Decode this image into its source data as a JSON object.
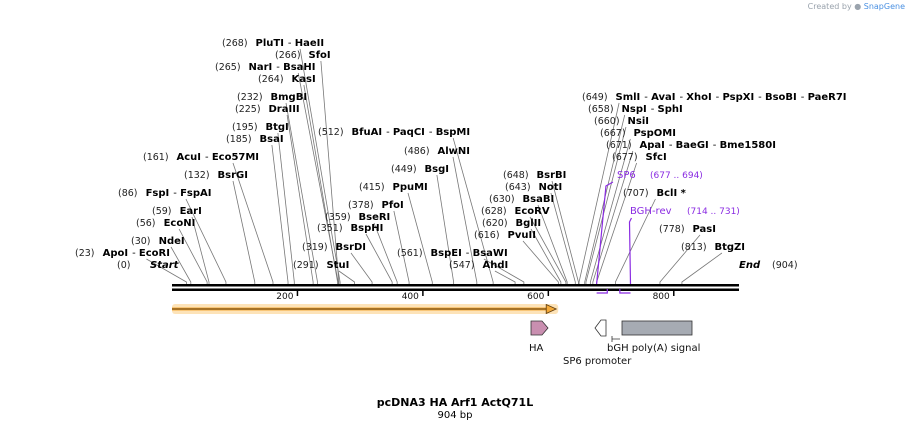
{
  "credit": {
    "prefix": "Created by",
    "brand": "SnapGene"
  },
  "map": {
    "name": "pcDNA3 HA Arf1 ActQ71L",
    "length_label": "904 bp",
    "length_bp": 904,
    "start_label": "Start",
    "end_label": "End",
    "start_pos_label": "(0)",
    "end_pos_label": "(904)",
    "ticks": [
      200,
      400,
      600,
      800
    ],
    "colors": {
      "ha": "#c98fb0",
      "polya": "#a6abb3",
      "orf": "#f4a938",
      "primer": "#8a2be2"
    }
  },
  "sites": [
    {
      "label": "ApoI",
      "pos_label": "(23)",
      "pos": 23,
      "group": [
        "ApoI",
        "EcoRI"
      ]
    },
    {
      "label": "NdeI",
      "pos_label": "(30)",
      "pos": 30,
      "group": [
        "NdeI"
      ]
    },
    {
      "label": "EcoNI",
      "pos_label": "(56)",
      "pos": 56,
      "group": [
        "EcoNI"
      ]
    },
    {
      "label": "EarI",
      "pos_label": "(59)",
      "pos": 59,
      "group": [
        "EarI"
      ]
    },
    {
      "label": "FspI",
      "pos_label": "(86)",
      "pos": 86,
      "group": [
        "FspI",
        "FspAI"
      ]
    },
    {
      "label": "BsrGI",
      "pos_label": "(132)",
      "pos": 132,
      "group": [
        "BsrGI"
      ]
    },
    {
      "label": "AcuI",
      "pos_label": "(161)",
      "pos": 161,
      "group": [
        "AcuI",
        "Eco57MI"
      ]
    },
    {
      "label": "BsaI",
      "pos_label": "(185)",
      "pos": 185,
      "group": [
        "BsaI"
      ]
    },
    {
      "label": "BtgI",
      "pos_label": "(195)",
      "pos": 195,
      "group": [
        "BtgI"
      ]
    },
    {
      "label": "DraIII",
      "pos_label": "(225)",
      "pos": 225,
      "group": [
        "DraIII"
      ]
    },
    {
      "label": "BmgBI",
      "pos_label": "(232)",
      "pos": 232,
      "group": [
        "BmgBI"
      ]
    },
    {
      "label": "KasI",
      "pos_label": "(264)",
      "pos": 264,
      "group": [
        "KasI"
      ]
    },
    {
      "label": "NarI",
      "pos_label": "(265)",
      "pos": 265,
      "group": [
        "NarI",
        "BsaHI"
      ]
    },
    {
      "label": "SfoI",
      "pos_label": "(266)",
      "pos": 266,
      "group": [
        "SfoI"
      ]
    },
    {
      "label": "PluTI",
      "pos_label": "(268)",
      "pos": 268,
      "group": [
        "PluTI",
        "HaeII"
      ]
    },
    {
      "label": "StuI",
      "pos_label": "(291)",
      "pos": 291,
      "group": [
        "StuI"
      ]
    },
    {
      "label": "BsrDI",
      "pos_label": "(319)",
      "pos": 319,
      "group": [
        "BsrDI"
      ]
    },
    {
      "label": "BspHI",
      "pos_label": "(351)",
      "pos": 351,
      "group": [
        "BspHI"
      ]
    },
    {
      "label": "BseRI",
      "pos_label": "(359)",
      "pos": 359,
      "group": [
        "BseRI"
      ]
    },
    {
      "label": "PfoI",
      "pos_label": "(378)",
      "pos": 378,
      "group": [
        "PfoI"
      ]
    },
    {
      "label": "PpuMI",
      "pos_label": "(415)",
      "pos": 415,
      "group": [
        "PpuMI"
      ]
    },
    {
      "label": "BsgI",
      "pos_label": "(449)",
      "pos": 449,
      "group": [
        "BsgI"
      ]
    },
    {
      "label": "AlwNI",
      "pos_label": "(486)",
      "pos": 486,
      "group": [
        "AlwNI"
      ]
    },
    {
      "label": "BfuAI",
      "pos_label": "(512)",
      "pos": 512,
      "group": [
        "BfuAI",
        "PaqCI",
        "BspMI"
      ]
    },
    {
      "label": "BspEI",
      "pos_label": "(561)",
      "pos": 561,
      "group": [
        "BspEI",
        "BsaWI"
      ]
    },
    {
      "label": "AhdI",
      "pos_label": "(547)",
      "pos": 547,
      "group": [
        "AhdI"
      ]
    },
    {
      "label": "PvuII",
      "pos_label": "(616)",
      "pos": 616,
      "group": [
        "PvuII"
      ]
    },
    {
      "label": "BglII",
      "pos_label": "(620)",
      "pos": 620,
      "group": [
        "BglII"
      ]
    },
    {
      "label": "EcoRV",
      "pos_label": "(628)",
      "pos": 628,
      "group": [
        "EcoRV"
      ]
    },
    {
      "label": "BsaBI",
      "pos_label": "(630)",
      "pos": 630,
      "group": [
        "BsaBI"
      ]
    },
    {
      "label": "NotI",
      "pos_label": "(643)",
      "pos": 643,
      "group": [
        "NotI"
      ]
    },
    {
      "label": "BsrBI",
      "pos_label": "(648)",
      "pos": 648,
      "group": [
        "BsrBI"
      ]
    },
    {
      "label": "SmlI",
      "pos_label": "(649)",
      "pos": 649,
      "group": [
        "SmlI",
        "AvaI",
        "XhoI",
        "PspXI",
        "BsoBI",
        "PaeR7I"
      ]
    },
    {
      "label": "NspI",
      "pos_label": "(658)",
      "pos": 658,
      "group": [
        "NspI",
        "SphI"
      ]
    },
    {
      "label": "NsiI",
      "pos_label": "(660)",
      "pos": 660,
      "group": [
        "NsiI"
      ]
    },
    {
      "label": "PspOMI",
      "pos_label": "(667)",
      "pos": 667,
      "group": [
        "PspOMI"
      ]
    },
    {
      "label": "ApaI",
      "pos_label": "(671)",
      "pos": 671,
      "group": [
        "ApaI",
        "BaeGI",
        "Bme1580I"
      ]
    },
    {
      "label": "SfcI",
      "pos_label": "(677)",
      "pos": 677,
      "group": [
        "SfcI"
      ]
    },
    {
      "label": "BclI *",
      "pos_label": "(707)",
      "pos": 707,
      "group": [
        "BclI *"
      ]
    },
    {
      "label": "PasI",
      "pos_label": "(778)",
      "pos": 778,
      "group": [
        "PasI"
      ]
    },
    {
      "label": "BtgZI",
      "pos_label": "(813)",
      "pos": 813,
      "group": [
        "BtgZI"
      ]
    }
  ],
  "primers": [
    {
      "name": "SP6",
      "range_label": "(677 .. 694)",
      "start": 677,
      "end": 694
    },
    {
      "name": "BGH-rev",
      "range_label": "(714 .. 731)",
      "start": 714,
      "end": 731
    }
  ],
  "features": [
    {
      "name": "HA",
      "start": 576,
      "end": 603,
      "direction": "forward"
    },
    {
      "name": "SP6 promoter",
      "start": 677,
      "end": 694,
      "direction": "reverse"
    },
    {
      "name": "bGH poly(A) signal",
      "start": 713,
      "end": 824,
      "direction": "none"
    },
    {
      "name": "ORF",
      "start": 1,
      "end": 603,
      "direction": "forward"
    }
  ]
}
